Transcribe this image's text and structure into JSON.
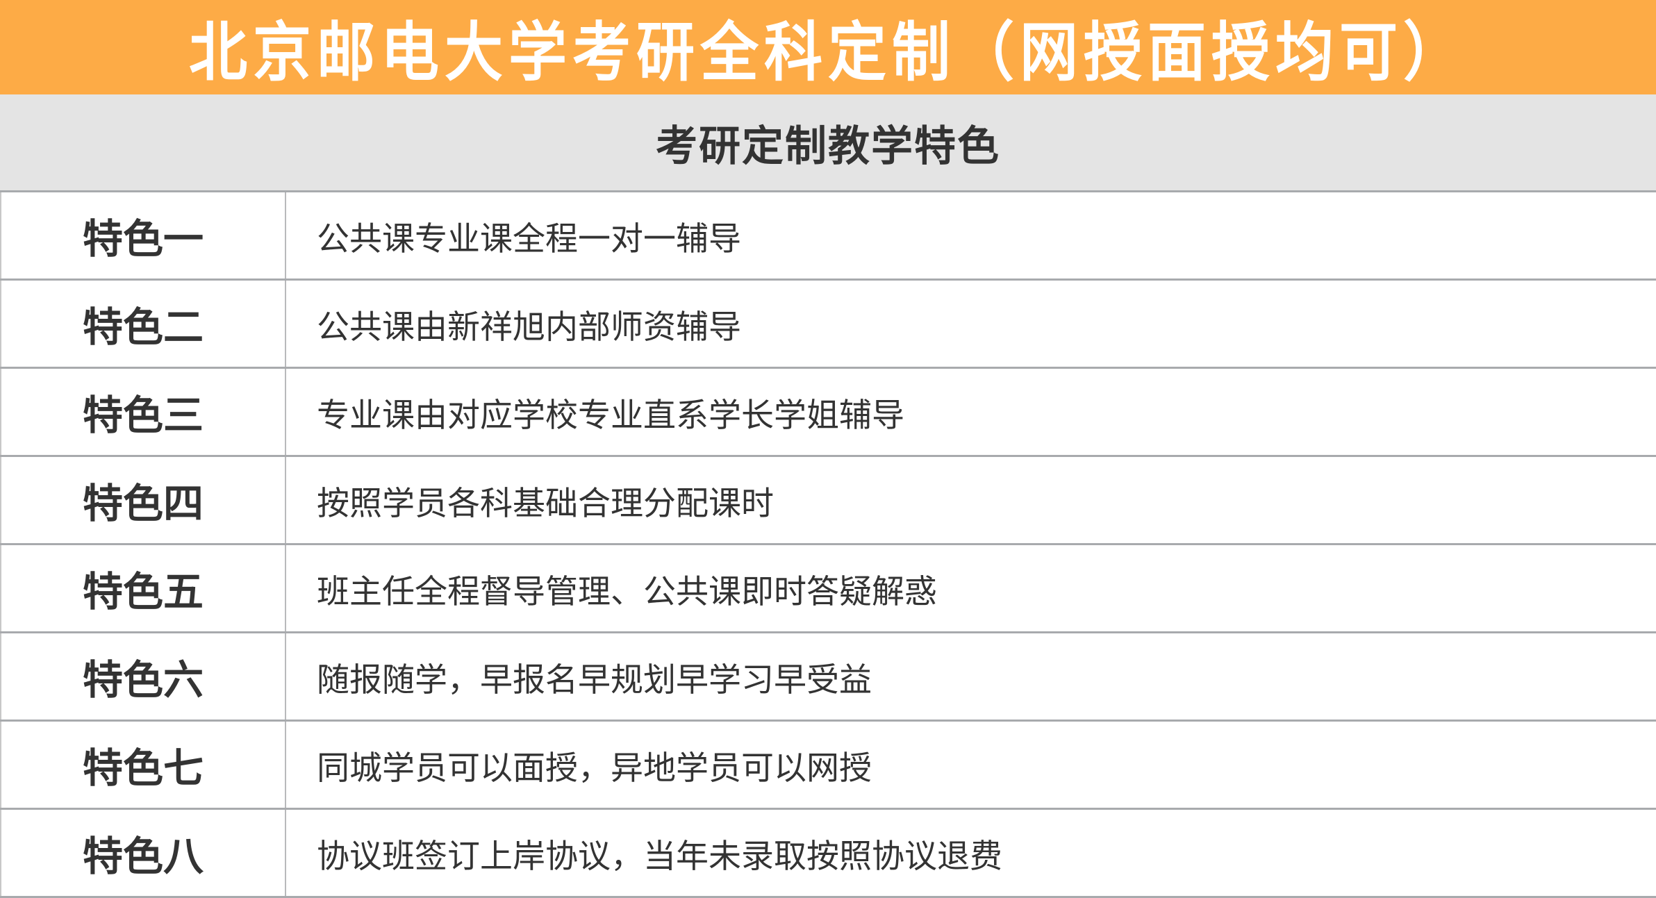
{
  "header": {
    "title": "北京邮电大学考研全科定制（网授面授均可）",
    "color": "#FDAB46"
  },
  "section": {
    "title": "考研定制教学特色"
  },
  "features": [
    {
      "label": "特色一",
      "text": "公共课专业课全程一对一辅导"
    },
    {
      "label": "特色二",
      "text": "公共课由新祥旭内部师资辅导"
    },
    {
      "label": "特色三",
      "text": "专业课由对应学校专业直系学长学姐辅导"
    },
    {
      "label": "特色四",
      "text": "按照学员各科基础合理分配课时"
    },
    {
      "label": "特色五",
      "text": "班主任全程督导管理、公共课即时答疑解惑"
    },
    {
      "label": "特色六",
      "text": "随报随学，早报名早规划早学习早受益"
    },
    {
      "label": "特色七",
      "text": "同城学员可以面授，异地学员可以网授"
    },
    {
      "label": "特色八",
      "text": "协议班签订上岸协议，当年未录取按照协议退费"
    }
  ]
}
